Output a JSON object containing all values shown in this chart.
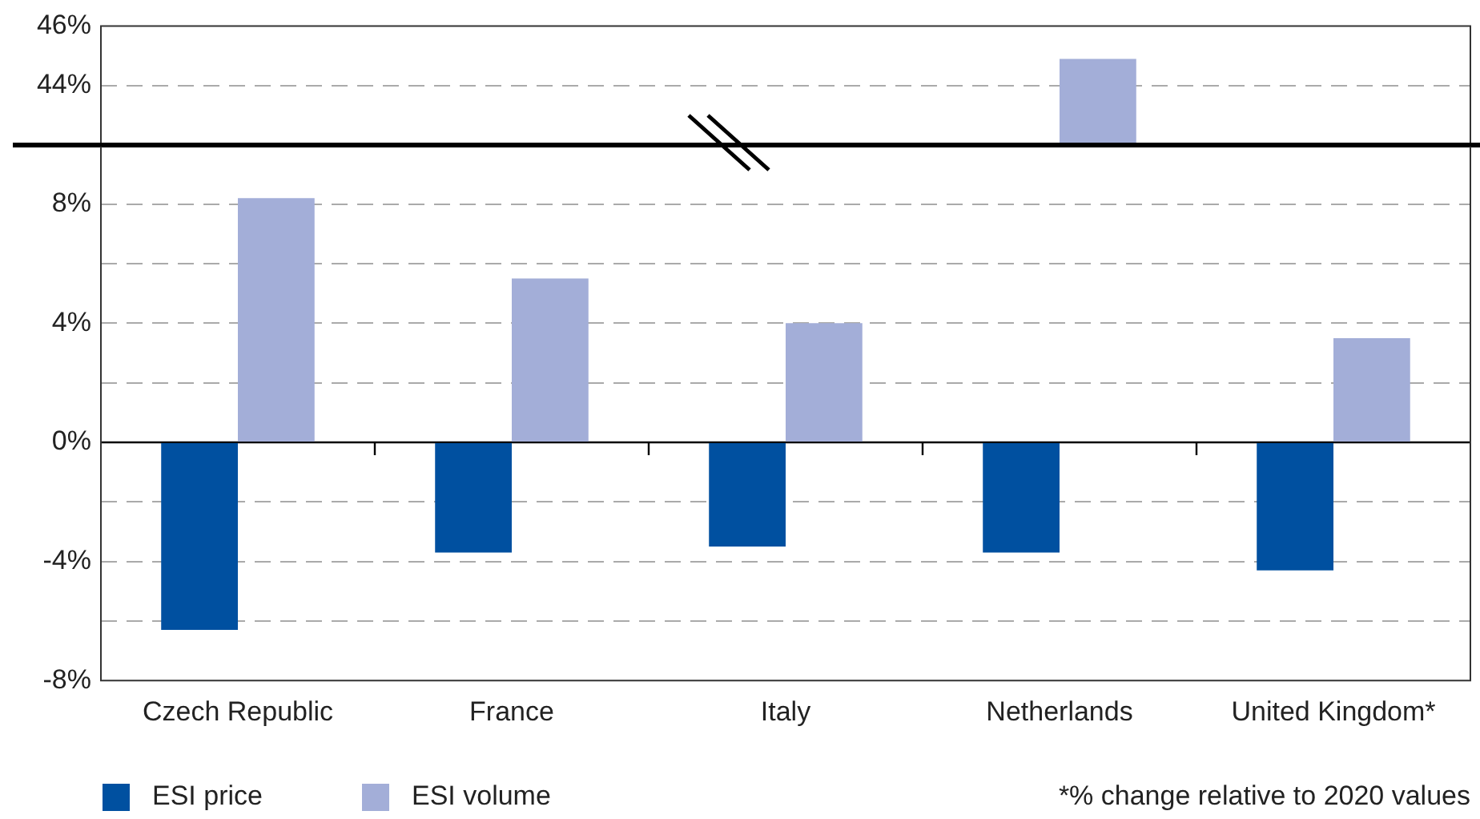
{
  "chart_data": [
    {
      "type": "bar",
      "categories": [
        null,
        null,
        null,
        null,
        null
      ],
      "series": [
        {
          "color": "#0050a0",
          "values": [
            null,
            null,
            null,
            null,
            null
          ]
        },
        {
          "color": "#a3aed8",
          "values": [
            null,
            null,
            null,
            44.9,
            null
          ]
        }
      ],
      "ylim": [
        42,
        46
      ],
      "yticks": [
        {
          "value": 44,
          "label": "44%"
        },
        {
          "value": 46,
          "label": "46%"
        }
      ],
      "grid": "y",
      "tick_labels": "y"
    },
    {
      "type": "bar",
      "categories": [
        "Czech Republic",
        "France",
        "Italy",
        "Netherlands",
        "United Kingdom*"
      ],
      "series": [
        {
          "name": "ESI price",
          "color": "#0050a0",
          "values": [
            -6.3,
            -3.7,
            -3.5,
            -3.7,
            -4.3
          ]
        },
        {
          "name": "ESI volume",
          "color": "#a3aed8",
          "values": [
            8.2,
            5.5,
            4.0,
            null,
            3.5
          ]
        }
      ],
      "ylim": [
        -8,
        10
      ],
      "yticks": [
        {
          "value": -8,
          "label": "-8%"
        },
        {
          "value": -6,
          "label": null
        },
        {
          "value": -4,
          "label": "-4%"
        },
        {
          "value": -2,
          "label": null
        },
        {
          "value": 0,
          "label": "0%"
        },
        {
          "value": 2,
          "label": null
        },
        {
          "value": 4,
          "label": "4%"
        },
        {
          "value": 6,
          "label": null
        },
        {
          "value": 8,
          "label": "8%"
        }
      ],
      "grid": "y",
      "legend": "bottom left",
      "annotations": [
        "*% change relative to 2020 values"
      ]
    }
  ]
}
